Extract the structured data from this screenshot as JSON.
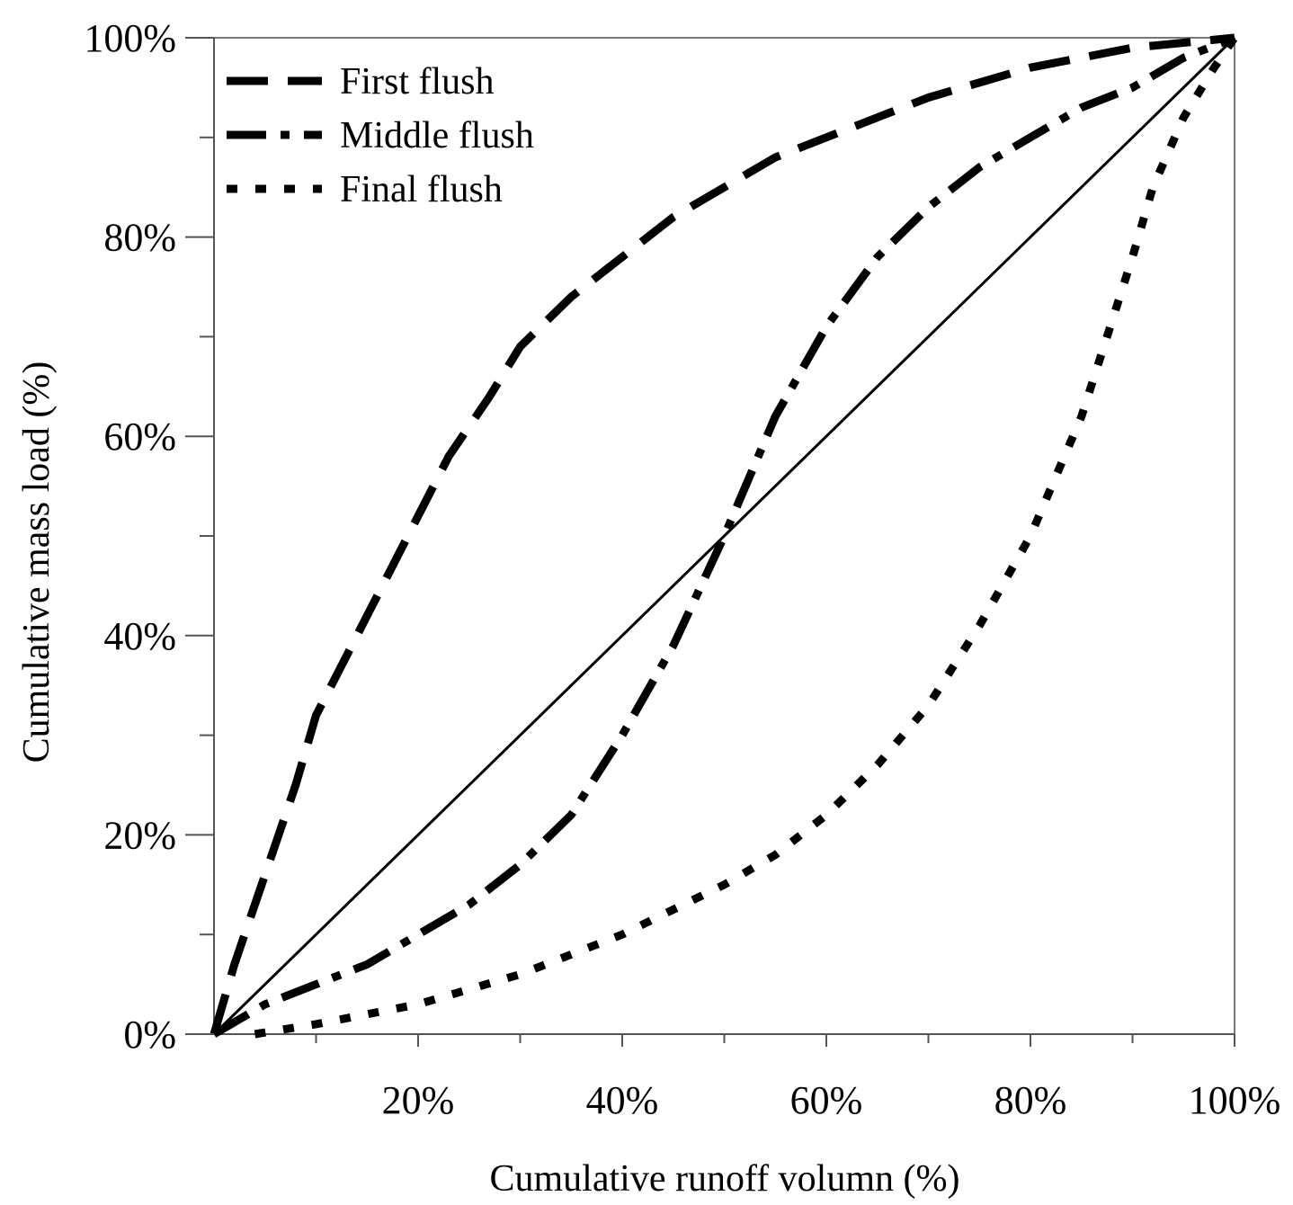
{
  "chart_data": {
    "type": "line",
    "title": "",
    "xlabel": "Cumulative runoff volumn (%)",
    "ylabel": "Cumulative mass load (%)",
    "xlim": [
      0,
      100
    ],
    "ylim": [
      0,
      100
    ],
    "x_ticks": [
      20,
      40,
      60,
      80,
      100
    ],
    "x_tick_labels": [
      "20%",
      "40%",
      "60%",
      "80%",
      "100%"
    ],
    "y_ticks": [
      0,
      20,
      40,
      60,
      80,
      100
    ],
    "y_tick_labels": [
      "0%",
      "20%",
      "40%",
      "60%",
      "80%",
      "100%"
    ],
    "x_minor_ticks": [
      10,
      30,
      50,
      70,
      90
    ],
    "y_minor_ticks": [
      10,
      30,
      50,
      70,
      90
    ],
    "grid": false,
    "legend_position": "top-left",
    "series": [
      {
        "name": "First flush",
        "style": "dashed",
        "color": "#000000",
        "x": [
          0,
          2,
          5,
          8,
          10,
          13,
          15,
          17,
          20,
          23,
          27,
          30,
          35,
          40,
          45,
          50,
          55,
          60,
          70,
          80,
          90,
          100
        ],
        "y": [
          0,
          7,
          16,
          25,
          32,
          38,
          42,
          46,
          52,
          58,
          64,
          69,
          74,
          78,
          82,
          85,
          88,
          90,
          94,
          97,
          99,
          100
        ]
      },
      {
        "name": "Middle flush",
        "style": "dash-dot",
        "color": "#000000",
        "x": [
          0,
          5,
          10,
          15,
          20,
          25,
          30,
          35,
          40,
          45,
          50,
          55,
          60,
          65,
          70,
          75,
          80,
          85,
          90,
          95,
          100
        ],
        "y": [
          0,
          3,
          5,
          7,
          10,
          13,
          17,
          22,
          30,
          39,
          50,
          62,
          71,
          78,
          83,
          87,
          90,
          93,
          95,
          98,
          100
        ]
      },
      {
        "name": "Final flush",
        "style": "dotted",
        "color": "#000000",
        "x": [
          4,
          10,
          20,
          30,
          40,
          50,
          55,
          60,
          65,
          70,
          75,
          80,
          85,
          90,
          92,
          95,
          98,
          100
        ],
        "y": [
          0,
          1,
          3,
          6,
          10,
          15,
          18,
          22,
          27,
          33,
          41,
          50,
          62,
          78,
          85,
          92,
          97,
          100
        ]
      },
      {
        "style": "solid",
        "color": "#000000",
        "x": [
          0,
          100
        ],
        "y": [
          0,
          100
        ]
      }
    ]
  }
}
